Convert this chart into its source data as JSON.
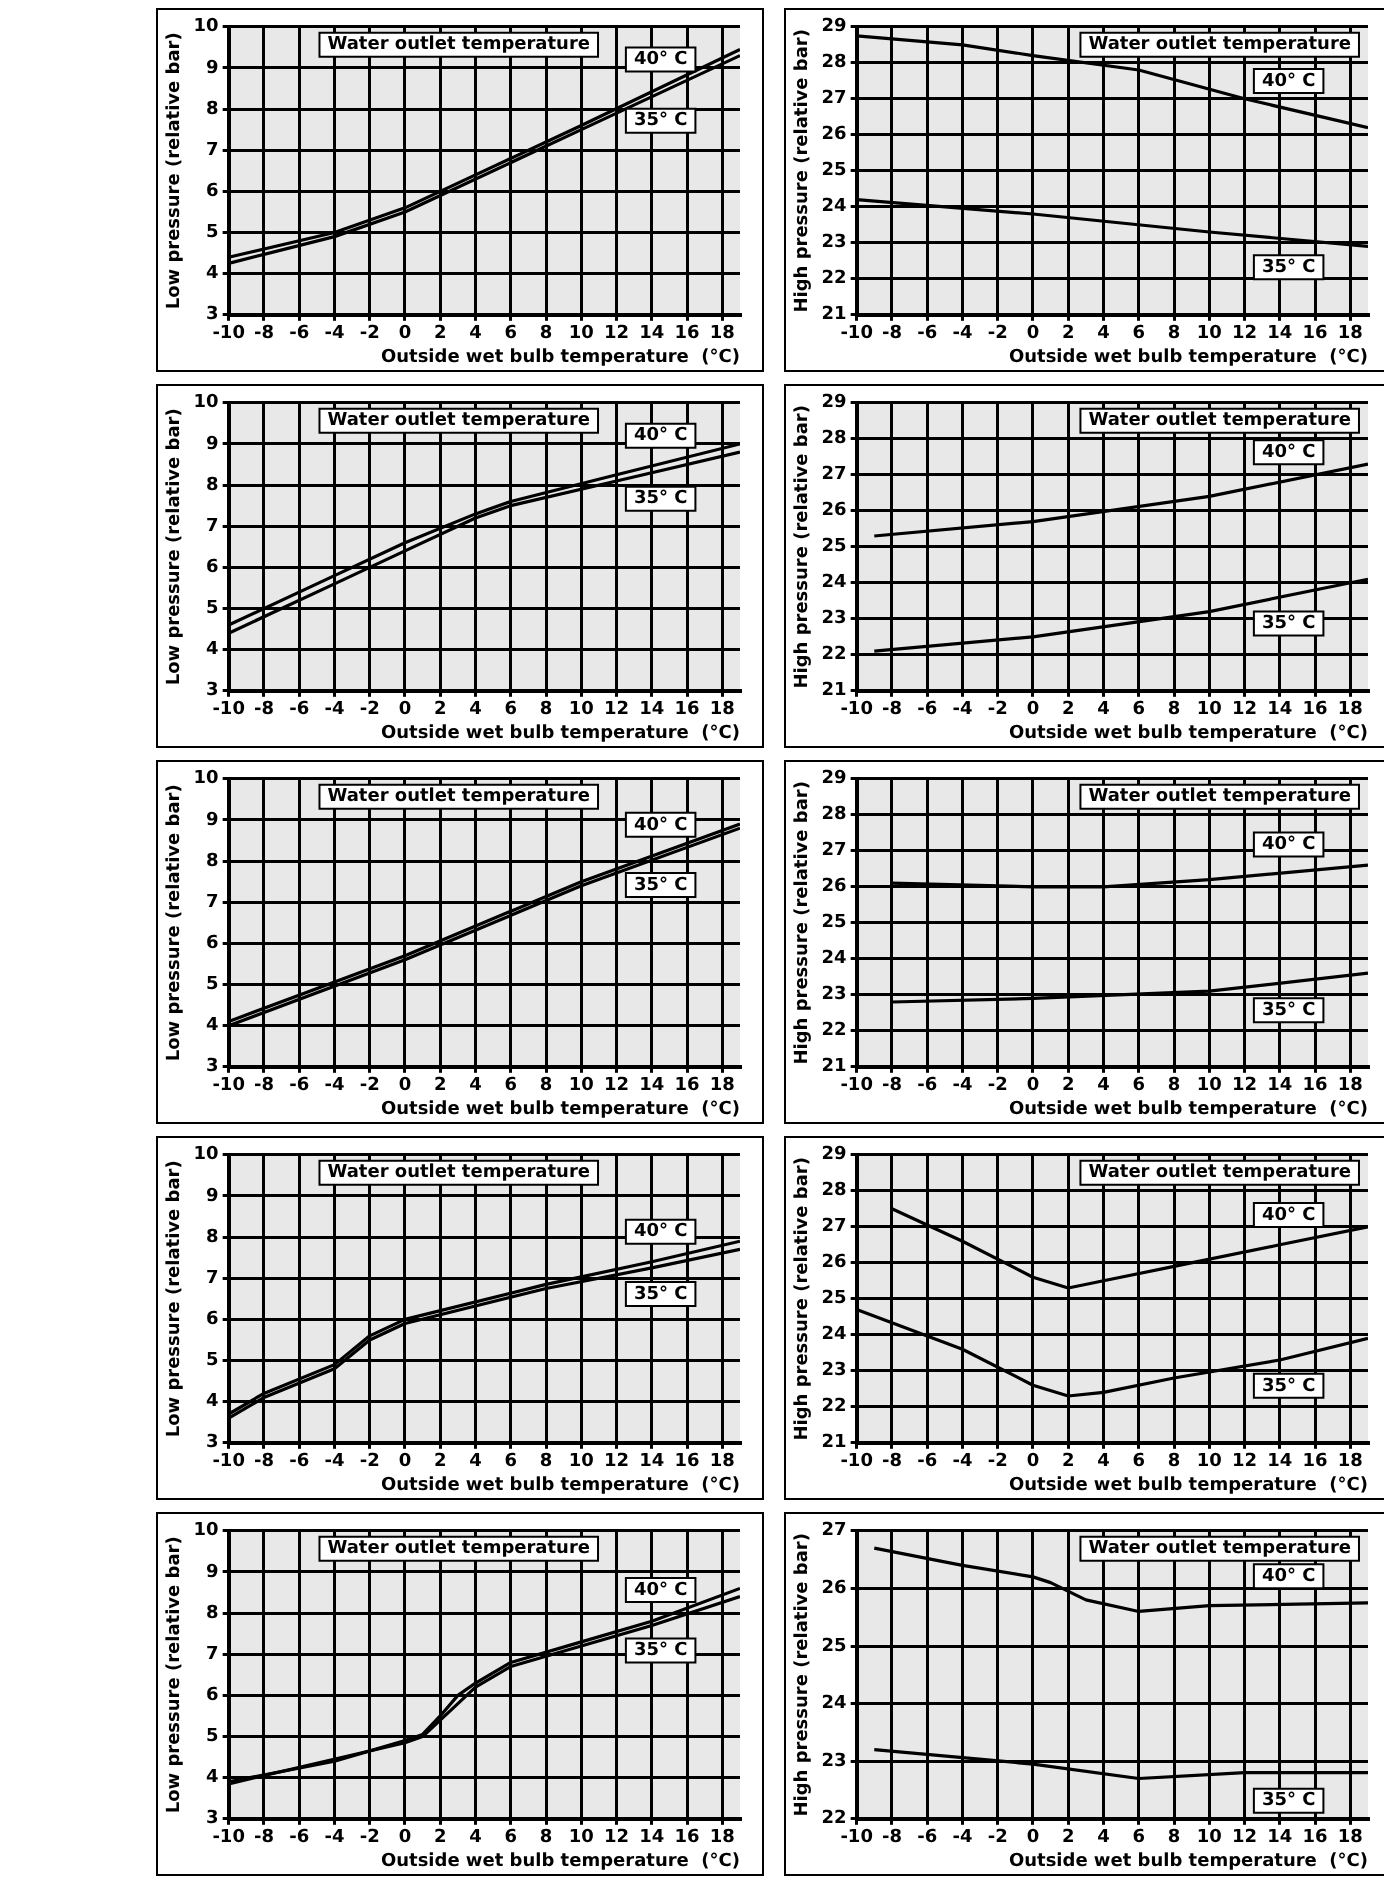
{
  "chart_data": [
    {
      "type": "line",
      "xlabel": "Outside wet bulb temperature  (°C)",
      "ylabel": "Low pressure (relative bar)",
      "legend_title": "Water outlet temperature",
      "xlim": [
        -10,
        19
      ],
      "xticks": [
        -10,
        -8,
        -6,
        -4,
        -2,
        0,
        2,
        4,
        6,
        8,
        10,
        12,
        14,
        16,
        18
      ],
      "ylim": [
        3,
        10
      ],
      "yticks": [
        3,
        4,
        5,
        6,
        7,
        8,
        9,
        10
      ],
      "grid": true,
      "marker": "none",
      "series": [
        {
          "name": "40° C",
          "color": "#000000",
          "x": [
            -10,
            -4,
            0,
            10,
            19
          ],
          "values": [
            4.4,
            5.0,
            5.6,
            7.6,
            9.45
          ]
        },
        {
          "name": "35° C",
          "color": "#000000",
          "x": [
            -10,
            -4,
            0,
            10,
            19
          ],
          "values": [
            4.25,
            4.9,
            5.5,
            7.5,
            9.3
          ]
        }
      ]
    },
    {
      "type": "line",
      "xlabel": "Outside wet bulb temperature  (°C)",
      "ylabel": "High pressure (relative bar)",
      "legend_title": "Water outlet temperature",
      "xlim": [
        -10,
        19
      ],
      "xticks": [
        -10,
        -8,
        -6,
        -4,
        -2,
        0,
        2,
        4,
        6,
        8,
        10,
        12,
        14,
        16,
        18
      ],
      "ylim": [
        21,
        29
      ],
      "yticks": [
        21,
        22,
        23,
        24,
        25,
        26,
        27,
        28,
        29
      ],
      "grid": true,
      "marker": "none",
      "series": [
        {
          "name": "40° C",
          "color": "#000000",
          "x": [
            -10,
            -4,
            0,
            6,
            12,
            19
          ],
          "values": [
            28.75,
            28.5,
            28.2,
            27.8,
            27.0,
            26.2
          ]
        },
        {
          "name": "35° C",
          "color": "#000000",
          "x": [
            -10,
            0,
            10,
            19
          ],
          "values": [
            24.2,
            23.8,
            23.3,
            22.9
          ]
        }
      ]
    },
    {
      "type": "line",
      "xlabel": "Outside wet bulb temperature  (°C)",
      "ylabel": "Low pressure (relative bar)",
      "legend_title": "Water outlet temperature",
      "xlim": [
        -10,
        19
      ],
      "xticks": [
        -10,
        -8,
        -6,
        -4,
        -2,
        0,
        2,
        4,
        6,
        8,
        10,
        12,
        14,
        16,
        18
      ],
      "ylim": [
        3,
        10
      ],
      "yticks": [
        3,
        4,
        5,
        6,
        7,
        8,
        9,
        10
      ],
      "grid": true,
      "marker": "none",
      "series": [
        {
          "name": "40° C",
          "color": "#000000",
          "x": [
            -10,
            -4,
            0,
            4,
            6,
            12,
            19
          ],
          "values": [
            4.6,
            5.8,
            6.6,
            7.3,
            7.6,
            8.25,
            9.0
          ]
        },
        {
          "name": "35° C",
          "color": "#000000",
          "x": [
            -10,
            -4,
            0,
            4,
            6,
            12,
            19
          ],
          "values": [
            4.4,
            5.6,
            6.4,
            7.2,
            7.5,
            8.1,
            8.8
          ]
        }
      ]
    },
    {
      "type": "line",
      "xlabel": "Outside wet bulb temperature  (°C)",
      "ylabel": "High pressure (relative bar)",
      "legend_title": "Water outlet temperature",
      "xlim": [
        -10,
        19
      ],
      "xticks": [
        -10,
        -8,
        -6,
        -4,
        -2,
        0,
        2,
        4,
        6,
        8,
        10,
        12,
        14,
        16,
        18
      ],
      "ylim": [
        21,
        29
      ],
      "yticks": [
        21,
        22,
        23,
        24,
        25,
        26,
        27,
        28,
        29
      ],
      "grid": true,
      "marker": "none",
      "series": [
        {
          "name": "40° C",
          "color": "#000000",
          "x": [
            -9,
            0,
            10,
            19
          ],
          "values": [
            25.3,
            25.7,
            26.4,
            27.3
          ]
        },
        {
          "name": "35° C",
          "color": "#000000",
          "x": [
            -9,
            0,
            10,
            19
          ],
          "values": [
            22.1,
            22.5,
            23.2,
            24.1
          ]
        }
      ]
    },
    {
      "type": "line",
      "xlabel": "Outside wet bulb temperature  (°C)",
      "ylabel": "Low pressure (relative bar)",
      "legend_title": "Water outlet temperature",
      "xlim": [
        -10,
        19
      ],
      "xticks": [
        -10,
        -8,
        -6,
        -4,
        -2,
        0,
        2,
        4,
        6,
        8,
        10,
        12,
        14,
        16,
        18
      ],
      "ylim": [
        3,
        10
      ],
      "yticks": [
        3,
        4,
        5,
        6,
        7,
        8,
        9,
        10
      ],
      "grid": true,
      "marker": "none",
      "series": [
        {
          "name": "40° C",
          "color": "#000000",
          "x": [
            -10,
            0,
            10,
            19
          ],
          "values": [
            4.1,
            5.7,
            7.5,
            8.9
          ]
        },
        {
          "name": "35° C",
          "color": "#000000",
          "x": [
            -10,
            0,
            10,
            19
          ],
          "values": [
            4.0,
            5.6,
            7.4,
            8.8
          ]
        }
      ]
    },
    {
      "type": "line",
      "xlabel": "Outside wet bulb temperature  (°C)",
      "ylabel": "High pressure (relative bar)",
      "legend_title": "Water outlet temperature",
      "xlim": [
        -10,
        19
      ],
      "xticks": [
        -10,
        -8,
        -6,
        -4,
        -2,
        0,
        2,
        4,
        6,
        8,
        10,
        12,
        14,
        16,
        18
      ],
      "ylim": [
        21,
        29
      ],
      "yticks": [
        21,
        22,
        23,
        24,
        25,
        26,
        27,
        28,
        29
      ],
      "grid": true,
      "marker": "none",
      "series": [
        {
          "name": "40° C",
          "color": "#000000",
          "x": [
            -8,
            0,
            4,
            10,
            19
          ],
          "values": [
            26.1,
            26.0,
            26.0,
            26.2,
            26.6
          ]
        },
        {
          "name": "35° C",
          "color": "#000000",
          "x": [
            -8,
            0,
            10,
            19
          ],
          "values": [
            22.8,
            22.9,
            23.1,
            23.6
          ]
        }
      ]
    },
    {
      "type": "line",
      "xlabel": "Outside wet bulb temperature  (°C)",
      "ylabel": "Low pressure (relative bar)",
      "legend_title": "Water outlet temperature",
      "xlim": [
        -10,
        19
      ],
      "xticks": [
        -10,
        -8,
        -6,
        -4,
        -2,
        0,
        2,
        4,
        6,
        8,
        10,
        12,
        14,
        16,
        18
      ],
      "ylim": [
        3,
        10
      ],
      "yticks": [
        3,
        4,
        5,
        6,
        7,
        8,
        9,
        10
      ],
      "grid": true,
      "marker": "none",
      "series": [
        {
          "name": "40° C",
          "color": "#000000",
          "x": [
            -10,
            -8,
            -4,
            -2,
            0,
            8,
            14,
            19
          ],
          "values": [
            3.7,
            4.2,
            4.9,
            5.6,
            6.0,
            6.85,
            7.4,
            7.9
          ]
        },
        {
          "name": "35° C",
          "color": "#000000",
          "x": [
            -10,
            -8,
            -4,
            -2,
            0,
            8,
            14,
            19
          ],
          "values": [
            3.6,
            4.1,
            4.8,
            5.5,
            5.9,
            6.75,
            7.25,
            7.7
          ]
        }
      ]
    },
    {
      "type": "line",
      "xlabel": "Outside wet bulb temperature  (°C)",
      "ylabel": "High pressure (relative bar)",
      "legend_title": "Water outlet temperature",
      "xlim": [
        -10,
        19
      ],
      "xticks": [
        -10,
        -8,
        -6,
        -4,
        -2,
        0,
        2,
        4,
        6,
        8,
        10,
        12,
        14,
        16,
        18
      ],
      "ylim": [
        21,
        29
      ],
      "yticks": [
        21,
        22,
        23,
        24,
        25,
        26,
        27,
        28,
        29
      ],
      "grid": true,
      "marker": "none",
      "series": [
        {
          "name": "40° C",
          "color": "#000000",
          "x": [
            -8,
            -4,
            0,
            2,
            4,
            8,
            14,
            19
          ],
          "values": [
            27.5,
            26.6,
            25.6,
            25.3,
            25.5,
            25.9,
            26.5,
            27.0
          ]
        },
        {
          "name": "35° C",
          "color": "#000000",
          "x": [
            -10,
            -4,
            0,
            2,
            4,
            8,
            14,
            19
          ],
          "values": [
            24.7,
            23.6,
            22.6,
            22.3,
            22.4,
            22.8,
            23.3,
            23.9
          ]
        }
      ]
    },
    {
      "type": "line",
      "xlabel": "Outside wet bulb temperature  (°C)",
      "ylabel": "Low pressure (relative bar)",
      "legend_title": "Water outlet temperature",
      "xlim": [
        -10,
        19
      ],
      "xticks": [
        -10,
        -8,
        -6,
        -4,
        -2,
        0,
        2,
        4,
        6,
        8,
        10,
        12,
        14,
        16,
        18
      ],
      "ylim": [
        3,
        10
      ],
      "yticks": [
        3,
        4,
        5,
        6,
        7,
        8,
        9,
        10
      ],
      "grid": true,
      "marker": "none",
      "series": [
        {
          "name": "40° C",
          "color": "#000000",
          "x": [
            -10,
            -4,
            0,
            1,
            2,
            3,
            4,
            6,
            10,
            14,
            19
          ],
          "values": [
            3.9,
            4.4,
            4.9,
            5.05,
            5.5,
            6.0,
            6.3,
            6.8,
            7.3,
            7.8,
            8.6
          ]
        },
        {
          "name": "35° C",
          "color": "#000000",
          "x": [
            -10,
            0,
            1,
            2,
            3,
            4,
            6,
            10,
            14,
            19
          ],
          "values": [
            3.85,
            4.85,
            5.0,
            5.4,
            5.8,
            6.2,
            6.7,
            7.2,
            7.7,
            8.4
          ]
        }
      ]
    },
    {
      "type": "line",
      "xlabel": "Outside wet bulb temperature  (°C)",
      "ylabel": "High pressure (relative bar)",
      "legend_title": "Water outlet temperature",
      "xlim": [
        -10,
        19
      ],
      "xticks": [
        -10,
        -8,
        -6,
        -4,
        -2,
        0,
        2,
        4,
        6,
        8,
        10,
        12,
        14,
        16,
        18
      ],
      "ylim": [
        22,
        27
      ],
      "yticks": [
        22,
        23,
        24,
        25,
        26,
        27
      ],
      "grid": true,
      "marker": "none",
      "series": [
        {
          "name": "40° C",
          "color": "#000000",
          "x": [
            -9,
            -4,
            0,
            1,
            3,
            6,
            10,
            19
          ],
          "values": [
            26.7,
            26.4,
            26.2,
            26.1,
            25.8,
            25.6,
            25.7,
            25.75
          ]
        },
        {
          "name": "35° C",
          "color": "#000000",
          "x": [
            -9,
            0,
            6,
            12,
            19
          ],
          "values": [
            23.2,
            22.95,
            22.7,
            22.8,
            22.8
          ]
        }
      ]
    }
  ]
}
